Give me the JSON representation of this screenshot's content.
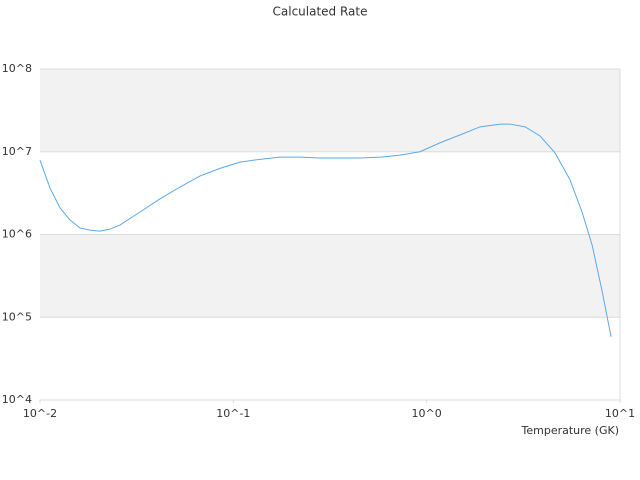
{
  "chart_data": {
    "type": "line",
    "title": "Calculated Rate",
    "x_label": "Temperature (GK)",
    "x": [
      0.01,
      0.01126,
      0.01269,
      0.01429,
      0.0161,
      0.01815,
      0.0204,
      0.023,
      0.0259,
      0.0329,
      0.0418,
      0.053,
      0.0673,
      0.0853,
      0.108,
      0.137,
      0.174,
      0.221,
      0.281,
      0.452,
      0.574,
      0.728,
      0.924,
      1.17,
      1.49,
      1.89,
      2.4,
      2.7,
      3.23,
      3.86,
      4.61,
      5.51,
      6.36,
      7.17,
      8.07,
      8.99
    ],
    "series": [
      {
        "color": "#5ca9e8",
        "values": [
          7900000,
          3650000,
          2100000,
          1500000,
          1200000,
          1130000,
          1100000,
          1160000,
          1300000,
          1870000,
          2700000,
          3750000,
          5100000,
          6300000,
          7500000,
          8100000,
          8600000,
          8600000,
          8400000,
          8400000,
          8600000,
          9100000,
          10000000,
          12800000,
          16000000,
          20000000,
          21600000,
          21600000,
          20000000,
          15500000,
          9700000,
          4600000,
          1870000,
          750000,
          210000,
          58000
        ]
      }
    ],
    "x_log": true,
    "y_log": true,
    "xlim": [
      0.01,
      10
    ],
    "ylim": [
      10000,
      100000000
    ],
    "xticks": [
      {
        "value": 0.01,
        "label": "10^-2"
      },
      {
        "value": 0.1,
        "label": "10^-1"
      },
      {
        "value": 1,
        "label": "10^0"
      },
      {
        "value": 10,
        "label": "10^1"
      }
    ],
    "yticks": [
      {
        "value": 10000,
        "label": "10^4"
      },
      {
        "value": 100000,
        "label": "10^5"
      },
      {
        "value": 1000000,
        "label": "10^6"
      },
      {
        "value": 10000000,
        "label": "10^7"
      },
      {
        "value": 100000000,
        "label": "10^8"
      }
    ],
    "grid": true
  }
}
